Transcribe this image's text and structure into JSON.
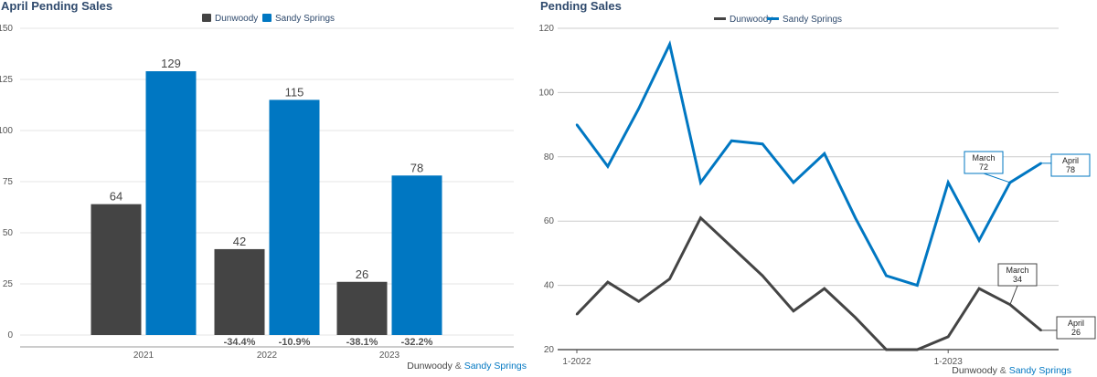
{
  "colors": {
    "dunwoody": "#444444",
    "sandy_springs": "#0077c2",
    "title": "#2f4a6d"
  },
  "footer": {
    "part1": "Dunwoody",
    "amp": " & ",
    "part2": "Sandy Springs"
  },
  "chart_data": [
    {
      "type": "bar",
      "title": "April Pending Sales",
      "legend": [
        "Dunwoody",
        "Sandy Springs"
      ],
      "legend_position": "top-center",
      "categories": [
        "2021",
        "2022",
        "2023"
      ],
      "series": [
        {
          "name": "Dunwoody",
          "values": [
            64,
            42,
            26
          ],
          "labels": [
            "64",
            "42",
            "26"
          ],
          "changes": [
            "",
            "-34.4%",
            "-38.1%"
          ]
        },
        {
          "name": "Sandy Springs",
          "values": [
            129,
            115,
            78
          ],
          "labels": [
            "129",
            "115",
            "78"
          ],
          "changes": [
            "",
            "-10.9%",
            "-32.2%"
          ]
        }
      ],
      "ylim": [
        0,
        150
      ],
      "yticks": [
        "0",
        "25",
        "50",
        "75",
        "100",
        "125",
        "150"
      ],
      "grid": true
    },
    {
      "type": "line",
      "title": "Pending Sales",
      "legend": [
        "Dunwoody",
        "Sandy Springs"
      ],
      "legend_position": "top-center",
      "x": [
        "1-2022",
        "2-2022",
        "3-2022",
        "4-2022",
        "5-2022",
        "6-2022",
        "7-2022",
        "8-2022",
        "9-2022",
        "10-2022",
        "11-2022",
        "12-2022",
        "1-2023",
        "2-2023",
        "3-2023",
        "4-2023"
      ],
      "xtick_labels": [
        {
          "index": 0,
          "label": "1-2022"
        },
        {
          "index": 12,
          "label": "1-2023"
        }
      ],
      "series": [
        {
          "name": "Dunwoody",
          "values": [
            31,
            41,
            35,
            42,
            61,
            52,
            43,
            32,
            39,
            30,
            20,
            20,
            24,
            39,
            34,
            26
          ]
        },
        {
          "name": "Sandy Springs",
          "values": [
            90,
            77,
            95,
            115,
            72,
            85,
            84,
            72,
            81,
            61,
            43,
            40,
            72,
            54,
            72,
            78
          ]
        }
      ],
      "annotations": [
        {
          "series": 1,
          "index": 14,
          "month": "March",
          "value": "72"
        },
        {
          "series": 1,
          "index": 15,
          "month": "April",
          "value": "78"
        },
        {
          "series": 0,
          "index": 14,
          "month": "March",
          "value": "34"
        },
        {
          "series": 0,
          "index": 15,
          "month": "April",
          "value": "26"
        }
      ],
      "ylim": [
        20,
        120
      ],
      "yticks": [
        "20",
        "40",
        "60",
        "80",
        "100",
        "120"
      ],
      "grid": true
    }
  ]
}
